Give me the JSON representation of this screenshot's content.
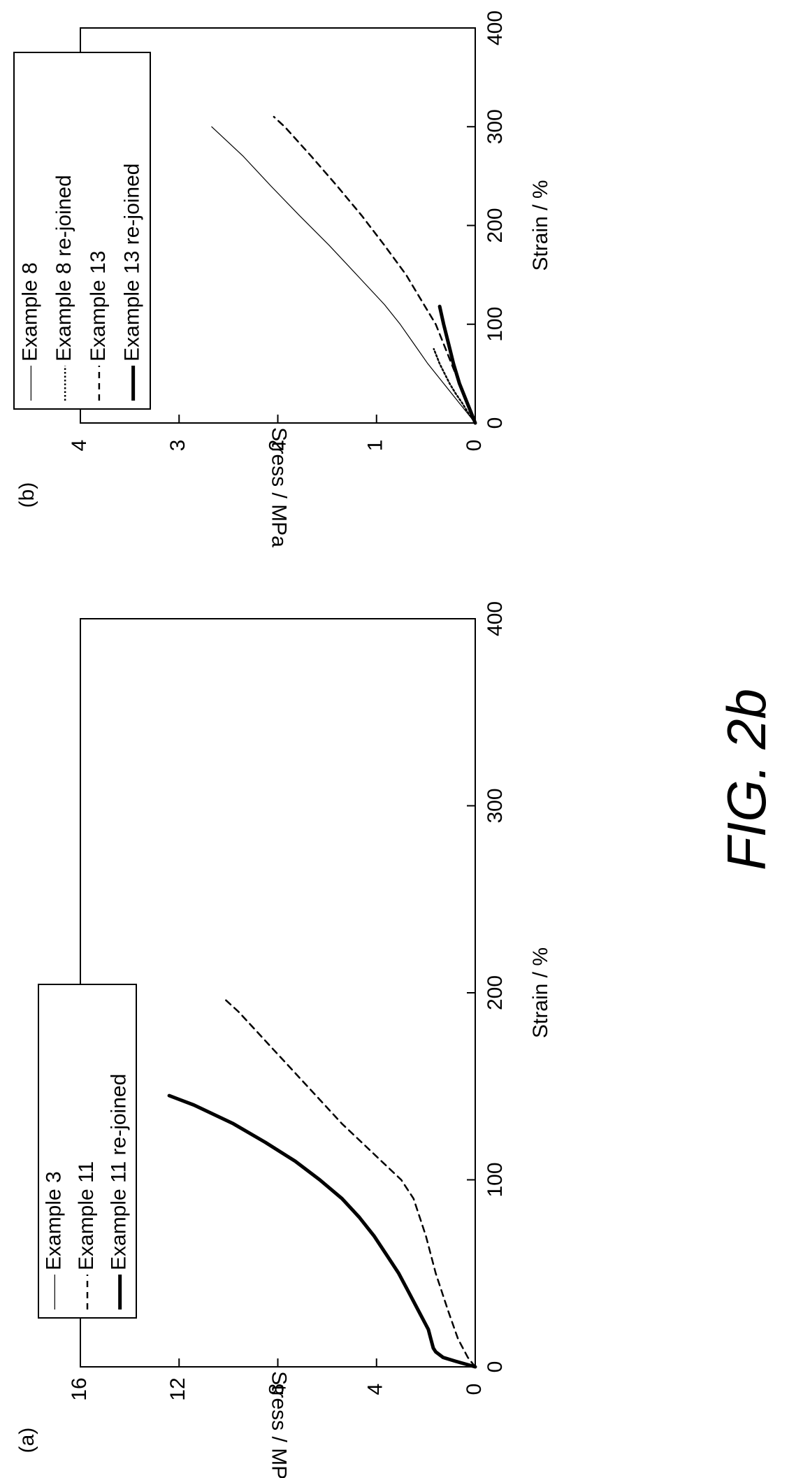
{
  "figure_label": "FIG. 2b",
  "colors": {
    "line": "#000000",
    "background": "#ffffff"
  },
  "chart_data": [
    {
      "panel_label": "(a)",
      "type": "line",
      "xlabel": "Strain / %",
      "ylabel": "Stress / MPa",
      "xlim": [
        0,
        400
      ],
      "ylim": [
        0,
        16
      ],
      "xticks": [
        "0",
        "100",
        "200",
        "300",
        "400"
      ],
      "yticks": [
        "0",
        "4",
        "8",
        "12",
        "16"
      ],
      "grid": false,
      "legend_position": "top-left",
      "series": [
        {
          "name": "Example 3",
          "style": "thin-solid",
          "x": [
            0,
            0,
            0,
            0,
            0
          ],
          "y": [
            0,
            0,
            0,
            0,
            0
          ]
        },
        {
          "name": "Example 11",
          "style": "dashed",
          "x": [
            0,
            5,
            15,
            30,
            50,
            70,
            90,
            100,
            110,
            120,
            130,
            140,
            150,
            160,
            170,
            180,
            190,
            196
          ],
          "y": [
            0,
            0.3,
            0.7,
            1.1,
            1.6,
            2.0,
            2.5,
            3.0,
            3.8,
            4.6,
            5.4,
            6.1,
            6.8,
            7.5,
            8.2,
            8.9,
            9.6,
            10.1
          ]
        },
        {
          "name": "Example 11 re-joined",
          "style": "thick-solid",
          "x": [
            0,
            3,
            5,
            8,
            10,
            15,
            20,
            30,
            40,
            50,
            60,
            70,
            80,
            90,
            100,
            110,
            120,
            130,
            140,
            145
          ],
          "y": [
            0,
            0.8,
            1.3,
            1.6,
            1.7,
            1.8,
            1.9,
            2.3,
            2.7,
            3.1,
            3.6,
            4.1,
            4.7,
            5.4,
            6.3,
            7.3,
            8.5,
            9.8,
            11.4,
            12.4
          ]
        }
      ]
    },
    {
      "panel_label": "(b)",
      "type": "line",
      "xlabel": "Strain / %",
      "ylabel": "Stress / MPa",
      "xlim": [
        0,
        400
      ],
      "ylim": [
        0,
        4
      ],
      "xticks": [
        "0",
        "100",
        "200",
        "300",
        "400"
      ],
      "yticks": [
        "0",
        "1",
        "2",
        "3",
        "4"
      ],
      "grid": false,
      "legend_position": "top-left",
      "series": [
        {
          "name": "Example 8",
          "style": "thin-solid",
          "x": [
            0,
            10,
            20,
            40,
            60,
            80,
            100,
            120,
            150,
            180,
            210,
            240,
            270,
            300
          ],
          "y": [
            0,
            0.08,
            0.16,
            0.32,
            0.48,
            0.62,
            0.76,
            0.92,
            1.2,
            1.48,
            1.78,
            2.07,
            2.35,
            2.67
          ]
        },
        {
          "name": "Example 8 re-joined",
          "style": "dotted",
          "x": [
            0,
            10,
            20,
            30,
            40,
            50,
            60,
            70,
            75
          ],
          "y": [
            0,
            0.07,
            0.13,
            0.2,
            0.26,
            0.31,
            0.36,
            0.4,
            0.42
          ]
        },
        {
          "name": "Example 13",
          "style": "dashed",
          "x": [
            0,
            20,
            40,
            60,
            80,
            100,
            120,
            150,
            180,
            210,
            240,
            270,
            300,
            310
          ],
          "y": [
            0,
            0.08,
            0.16,
            0.24,
            0.32,
            0.4,
            0.52,
            0.7,
            0.92,
            1.15,
            1.4,
            1.66,
            1.93,
            2.04
          ]
        },
        {
          "name": "Example 13 re-joined",
          "style": "thick-solid",
          "x": [
            0,
            10,
            20,
            40,
            60,
            80,
            100,
            118
          ],
          "y": [
            0,
            0.04,
            0.08,
            0.16,
            0.22,
            0.27,
            0.32,
            0.36
          ]
        }
      ]
    }
  ]
}
